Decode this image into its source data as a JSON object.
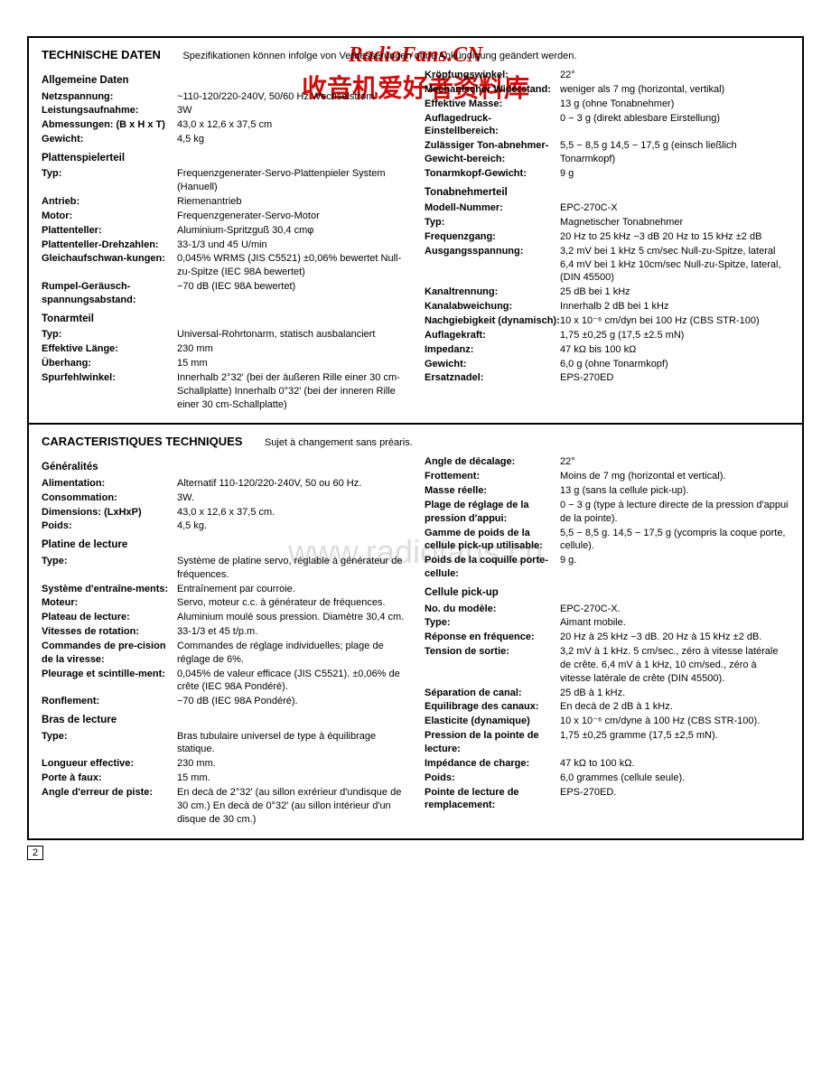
{
  "watermarks": {
    "top": "RadioFans.CN",
    "chinese": "收音机爱好者资料库",
    "center": "www.radiofans.cn"
  },
  "page_number": "2",
  "german": {
    "title": "TECHNISCHE DATEN",
    "note": "Spezifikationen können infolge von Verbesserungen ohne Ankündigung geändert werden.",
    "left": {
      "h1": "Allgemeine Daten",
      "netzspannung_l": "Netzspannung:",
      "netzspannung_v": "~110-120/220-240V, 50/60 Hz Wechselstrom",
      "leistung_l": "Leistungsaufnahme:",
      "leistung_v": "3W",
      "abm_l": "Abmessungen: (B x H x T)",
      "abm_v": "43,0 x 12,6 x 37,5 cm",
      "gewicht_l": "Gewicht:",
      "gewicht_v": "4,5 kg",
      "h2": "Plattenspielerteil",
      "typ_l": "Typ:",
      "typ_v": "Frequenzgenerater-Servo-Plattenpieler System (Hanuell)",
      "antrieb_l": "Antrieb:",
      "antrieb_v": "Riemenantrieb",
      "motor_l": "Motor:",
      "motor_v": "Frequenzgenerater-Servo-Motor",
      "teller_l": "Plattenteller:",
      "teller_v": "Aluminium-Spritzguß 30,4 cmφ",
      "drehz_l": "Plattenteller-Drehzahlen:",
      "drehz_v": "33-1/3 und 45 U/min",
      "gleich_l": "Gleichaufschwan-kungen:",
      "gleich_v": "0,045% WRMS (JIS C5521) ±0,06% bewertet Null-zu-Spitze (IEC 98A bewertet)",
      "rumpel_l": "Rumpel-Geräusch-spannungsabstand:",
      "rumpel_v": "−70 dB (IEC 98A bewertet)",
      "h3": "Tonarmteil",
      "tatyp_l": "Typ:",
      "tatyp_v": "Universal-Rohrtonarm, statisch ausbalanciert",
      "efflen_l": "Effektive Länge:",
      "efflen_v": "230 mm",
      "ueberhang_l": "Überhang:",
      "ueberhang_v": "15 mm",
      "spur_l": "Spurfehlwinkel:",
      "spur_v": "Innerhalb 2°32' (bei der äußeren Rille einer 30 cm-Schallplatte) Innerhalb 0°32' (bei der inneren Rille einer 30 cm-Schallplatte)"
    },
    "right": {
      "kropf_l": "Kröpfungswinkel:",
      "kropf_v": "22°",
      "mech_l": "Mechanischer Widerstand:",
      "mech_v": "weniger als 7 mg (horizontal, vertikal)",
      "effm_l": "Effektive Masse:",
      "effm_v": "13 g (ohne Tonabnehmer)",
      "aufl_l": "Auflagedruck-Einstellbereich:",
      "aufl_v": "0 − 3 g (direkt ablesbare Eirstellung)",
      "zul_l": "Zulässiger Ton-abnehmer-Gewicht-bereich:",
      "zul_v": "5,5 − 8,5 g\n14,5 − 17,5 g (einsch ließlich Tonarmkopf)",
      "takg_l": "Tonarmkopf-Gewicht:",
      "takg_v": "9 g",
      "h4": "Tonabnehmerteil",
      "model_l": "Modell-Nummer:",
      "model_v": "EPC-270C-X",
      "type_l": "Typ:",
      "type_v": "Magnetischer Tonabnehmer",
      "freq_l": "Frequenzgang:",
      "freq_v": "20 Hz to 25 kHz −3 dB\n20 Hz to 15 kHz ±2 dB",
      "ausg_l": "Ausgangsspannung:",
      "ausg_v": "3,2 mV bei 1 kHz\n5 cm/sec Null-zu-Spitze, lateral\n6,4 mV bei 1 kHz 10cm/sec Null-zu-Spitze, lateral, (DIN 45500)",
      "kantr_l": "Kanaltrennung:",
      "kantr_v": "25 dB bei 1 kHz",
      "kanab_l": "Kanalabweichung:",
      "kanab_v": "Innerhalb 2 dB bei 1 kHz",
      "nach_l": "Nachgiebigkeit (dynamisch):",
      "nach_v": "10 x 10⁻⁶ cm/dyn bei 100 Hz (CBS STR-100)",
      "aufk_l": "Auflagekraft:",
      "aufk_v": "1,75 ±0,25 g (17,5 ±2.5 mN)",
      "imp_l": "Impedanz:",
      "imp_v": "47 kΩ bis 100 kΩ",
      "gew_l": "Gewicht:",
      "gew_v": "6,0 g (ohne Tonarmkopf)",
      "ersatz_l": "Ersatznadel:",
      "ersatz_v": "EPS-270ED"
    }
  },
  "french": {
    "title": "CARACTERISTIQUES TECHNIQUES",
    "note": "Sujet à changement sans préaris.",
    "left": {
      "h1": "Généralités",
      "alim_l": "Alimentation:",
      "alim_v": "Alternatif 110-120/220-240V, 50 ou 60 Hz.",
      "cons_l": "Consommation:",
      "cons_v": "3W.",
      "dim_l": "Dimensions: (LxHxP)",
      "dim_v": "43,0 x 12,6 x 37,5 cm.",
      "poids_l": "Poids:",
      "poids_v": "4,5 kg.",
      "h2": "Platine de lecture",
      "type_l": "Type:",
      "type_v": "Système de platine servo, réglable à générateur de fréquences.",
      "sys_l": "Système d'entraîne-ments:",
      "sys_v": "Entraînement par courroie.",
      "mot_l": "Moteur:",
      "mot_v": "Servo, moteur c.c. à générateur de fréquences.",
      "plat_l": "Plateau de lecture:",
      "plat_v": "Aluminium moulé sous pression. Diamètre 30,4 cm.",
      "vit_l": "Vitesses de rotation:",
      "vit_v": "33-1/3 et 45 t/p.m.",
      "com_l": "Commandes de pre-cision de la viresse:",
      "com_v": "Commandes de réglage individuelles; plage de réglage de 6%.",
      "pleu_l": "Pleurage et scintille-ment:",
      "pleu_v": "0,045% de valeur efficace (JIS C5521). ±0,06% de crête (IEC 98A Pondéré).",
      "ronf_l": "Ronflement:",
      "ronf_v": "−70 dB (IEC 98A Pondéré).",
      "h3": "Bras de lecture",
      "btype_l": "Type:",
      "btype_v": "Bras tubulaire universel de type à équilibrage statique.",
      "long_l": "Longueur effective:",
      "long_v": "230 mm.",
      "porte_l": "Porte à faux:",
      "porte_v": "15 mm.",
      "ang_l": "Angle d'erreur de piste:",
      "ang_v": "En decà de 2°32' (au sillon exrérieur d'undisque de 30 cm.) En decà de 0°32' (au sillon intérieur d'un disque de 30 cm.)"
    },
    "right": {
      "adec_l": "Angle de décalage:",
      "adec_v": "22°",
      "frot_l": "Frottement:",
      "frot_v": "Moins de 7 mg (horizontal et vertical).",
      "masse_l": "Masse réelle:",
      "masse_v": "13 g (sans la cellule pick-up).",
      "plage_l": "Plage de réglage de la pression d'appui:",
      "plage_v": "0 − 3 g (type à lecture directe de la pression d'appui de la pointe).",
      "gamme_l": "Gamme de poids de la cellule pick-up utilisable:",
      "gamme_v": "5,5 − 8,5 g.\n14,5 − 17,5 g (ycompris la coque porte, cellule).",
      "poidscoq_l": "Poids de la coquille porte-cellule:",
      "poidscoq_v": "9 g.",
      "h4": "Cellule pick-up",
      "nomod_l": "No. du modèle:",
      "nomod_v": "EPC-270C-X.",
      "ctype_l": "Type:",
      "ctype_v": "Aimant mobile.",
      "rep_l": "Réponse en fréquence:",
      "rep_v": "20 Hz à 25 kHz −3 dB.\n20 Hz à 15 kHz ±2 dB.",
      "tens_l": "Tension de sortie:",
      "tens_v": "3,2 mV à 1 kHz.\n5 cm/sec., zéro à vitesse latérale de crête.\n6,4 mV à 1 kHz, 10 cm/sed., zéro à vitesse latérale de crête (DIN 45500).",
      "sep_l": "Séparation de canal:",
      "sep_v": "25 dB à 1 kHz.",
      "eq_l": "Equilibrage des canaux:",
      "eq_v": "En decà de 2 dB à 1 kHz.",
      "elast_l": "Elasticite (dynamique)",
      "elast_v": "10 x 10⁻⁶ cm/dyne à 100 Hz (CBS STR-100).",
      "press_l": "Pression de la pointe de lecture:",
      "press_v": "1,75 ±0,25 gramme (17,5 ±2,5 mN).",
      "impch_l": "Impédance de charge:",
      "impch_v": "47 kΩ to 100 kΩ.",
      "cpoids_l": "Poids:",
      "cpoids_v": "6,0 grammes (cellule seule).",
      "pointe_l": "Pointe de lecture de remplacement:",
      "pointe_v": "EPS-270ED."
    }
  }
}
